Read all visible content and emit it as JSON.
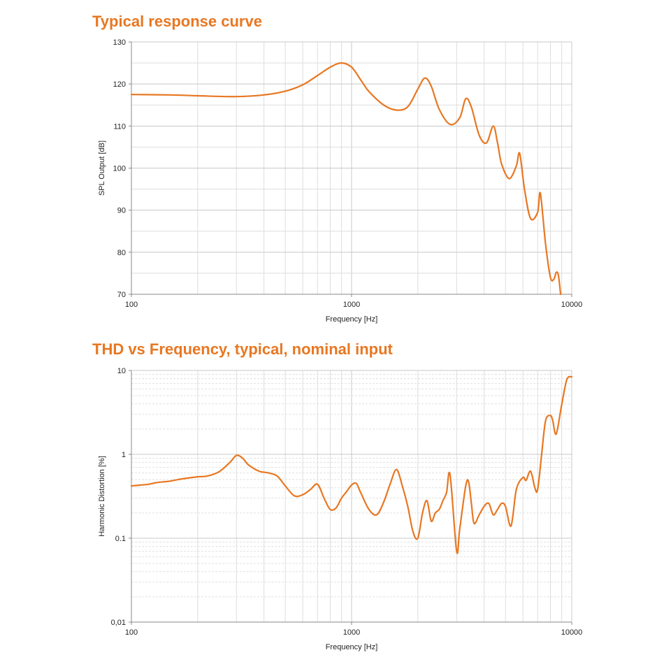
{
  "chart_data": [
    {
      "type": "line",
      "title": "Typical response curve",
      "xlabel": "Frequency [Hz]",
      "ylabel": "SPL Output [dB]",
      "x_scale": "log",
      "xlim": [
        100,
        10000
      ],
      "ylim": [
        70,
        130
      ],
      "x_ticks": [
        "100",
        "1000",
        "10000"
      ],
      "y_ticks": [
        "70",
        "80",
        "90",
        "100",
        "110",
        "120",
        "130"
      ],
      "grid": true,
      "color": "#e87722",
      "series": [
        {
          "x": [
            100,
            150,
            200,
            300,
            400,
            500,
            600,
            700,
            800,
            900,
            1000,
            1100,
            1200,
            1400,
            1600,
            1800,
            2000,
            2150,
            2300,
            2500,
            2800,
            3100,
            3300,
            3500,
            3800,
            4100,
            4400,
            4600,
            4800,
            5200,
            5600,
            5800,
            6100,
            6500,
            7000,
            7200,
            7600,
            8000,
            8300,
            8500,
            8700,
            8900
          ],
          "y": [
            117.5,
            117.4,
            117.2,
            117.0,
            117.4,
            118.3,
            119.8,
            122.0,
            124.0,
            125.0,
            124.0,
            121.0,
            118.2,
            115.0,
            113.8,
            114.6,
            118.8,
            121.4,
            119.5,
            114.0,
            110.4,
            112.0,
            116.5,
            114.5,
            107.8,
            106.0,
            110.0,
            106.0,
            101.0,
            97.5,
            100.5,
            103.5,
            95.0,
            88.0,
            89.5,
            94.0,
            82.0,
            74.0,
            73.6,
            75.2,
            74.5,
            70.0
          ]
        }
      ]
    },
    {
      "type": "line",
      "title": "THD vs Frequency, typical, nominal input",
      "xlabel": "Frequency [Hz]",
      "ylabel": "Harmonic Distortion [%]",
      "x_scale": "log",
      "y_scale": "log",
      "xlim": [
        100,
        10000
      ],
      "ylim": [
        0.01,
        10
      ],
      "x_ticks": [
        "100",
        "1000",
        "10000"
      ],
      "y_ticks": [
        "0,01",
        "0.1",
        "1",
        "10"
      ],
      "grid": true,
      "color": "#e87722",
      "series": [
        {
          "x": [
            100,
            110,
            120,
            130,
            140,
            150,
            170,
            200,
            220,
            250,
            280,
            300,
            320,
            340,
            380,
            420,
            460,
            500,
            550,
            600,
            650,
            700,
            750,
            800,
            850,
            900,
            950,
            1000,
            1050,
            1100,
            1200,
            1300,
            1400,
            1500,
            1600,
            1700,
            1800,
            1900,
            2000,
            2100,
            2200,
            2300,
            2400,
            2500,
            2600,
            2700,
            2800,
            3000,
            3100,
            3300,
            3400,
            3500,
            3600,
            3800,
            4000,
            4200,
            4400,
            4600,
            4800,
            5000,
            5300,
            5600,
            6000,
            6200,
            6500,
            6800,
            7000,
            7300,
            7600,
            8000,
            8200,
            8500,
            9000,
            9500,
            10000
          ],
          "y": [
            0.42,
            0.43,
            0.44,
            0.46,
            0.47,
            0.48,
            0.51,
            0.54,
            0.55,
            0.62,
            0.8,
            0.97,
            0.9,
            0.75,
            0.63,
            0.6,
            0.55,
            0.42,
            0.32,
            0.33,
            0.38,
            0.44,
            0.3,
            0.22,
            0.23,
            0.3,
            0.36,
            0.43,
            0.45,
            0.35,
            0.22,
            0.19,
            0.27,
            0.45,
            0.66,
            0.42,
            0.24,
            0.12,
            0.1,
            0.2,
            0.28,
            0.16,
            0.2,
            0.22,
            0.28,
            0.35,
            0.57,
            0.07,
            0.13,
            0.42,
            0.47,
            0.26,
            0.15,
            0.19,
            0.24,
            0.26,
            0.19,
            0.22,
            0.26,
            0.24,
            0.14,
            0.38,
            0.53,
            0.49,
            0.63,
            0.4,
            0.38,
            1.0,
            2.5,
            2.9,
            2.5,
            1.75,
            3.9,
            7.8,
            8.4
          ]
        }
      ]
    }
  ]
}
